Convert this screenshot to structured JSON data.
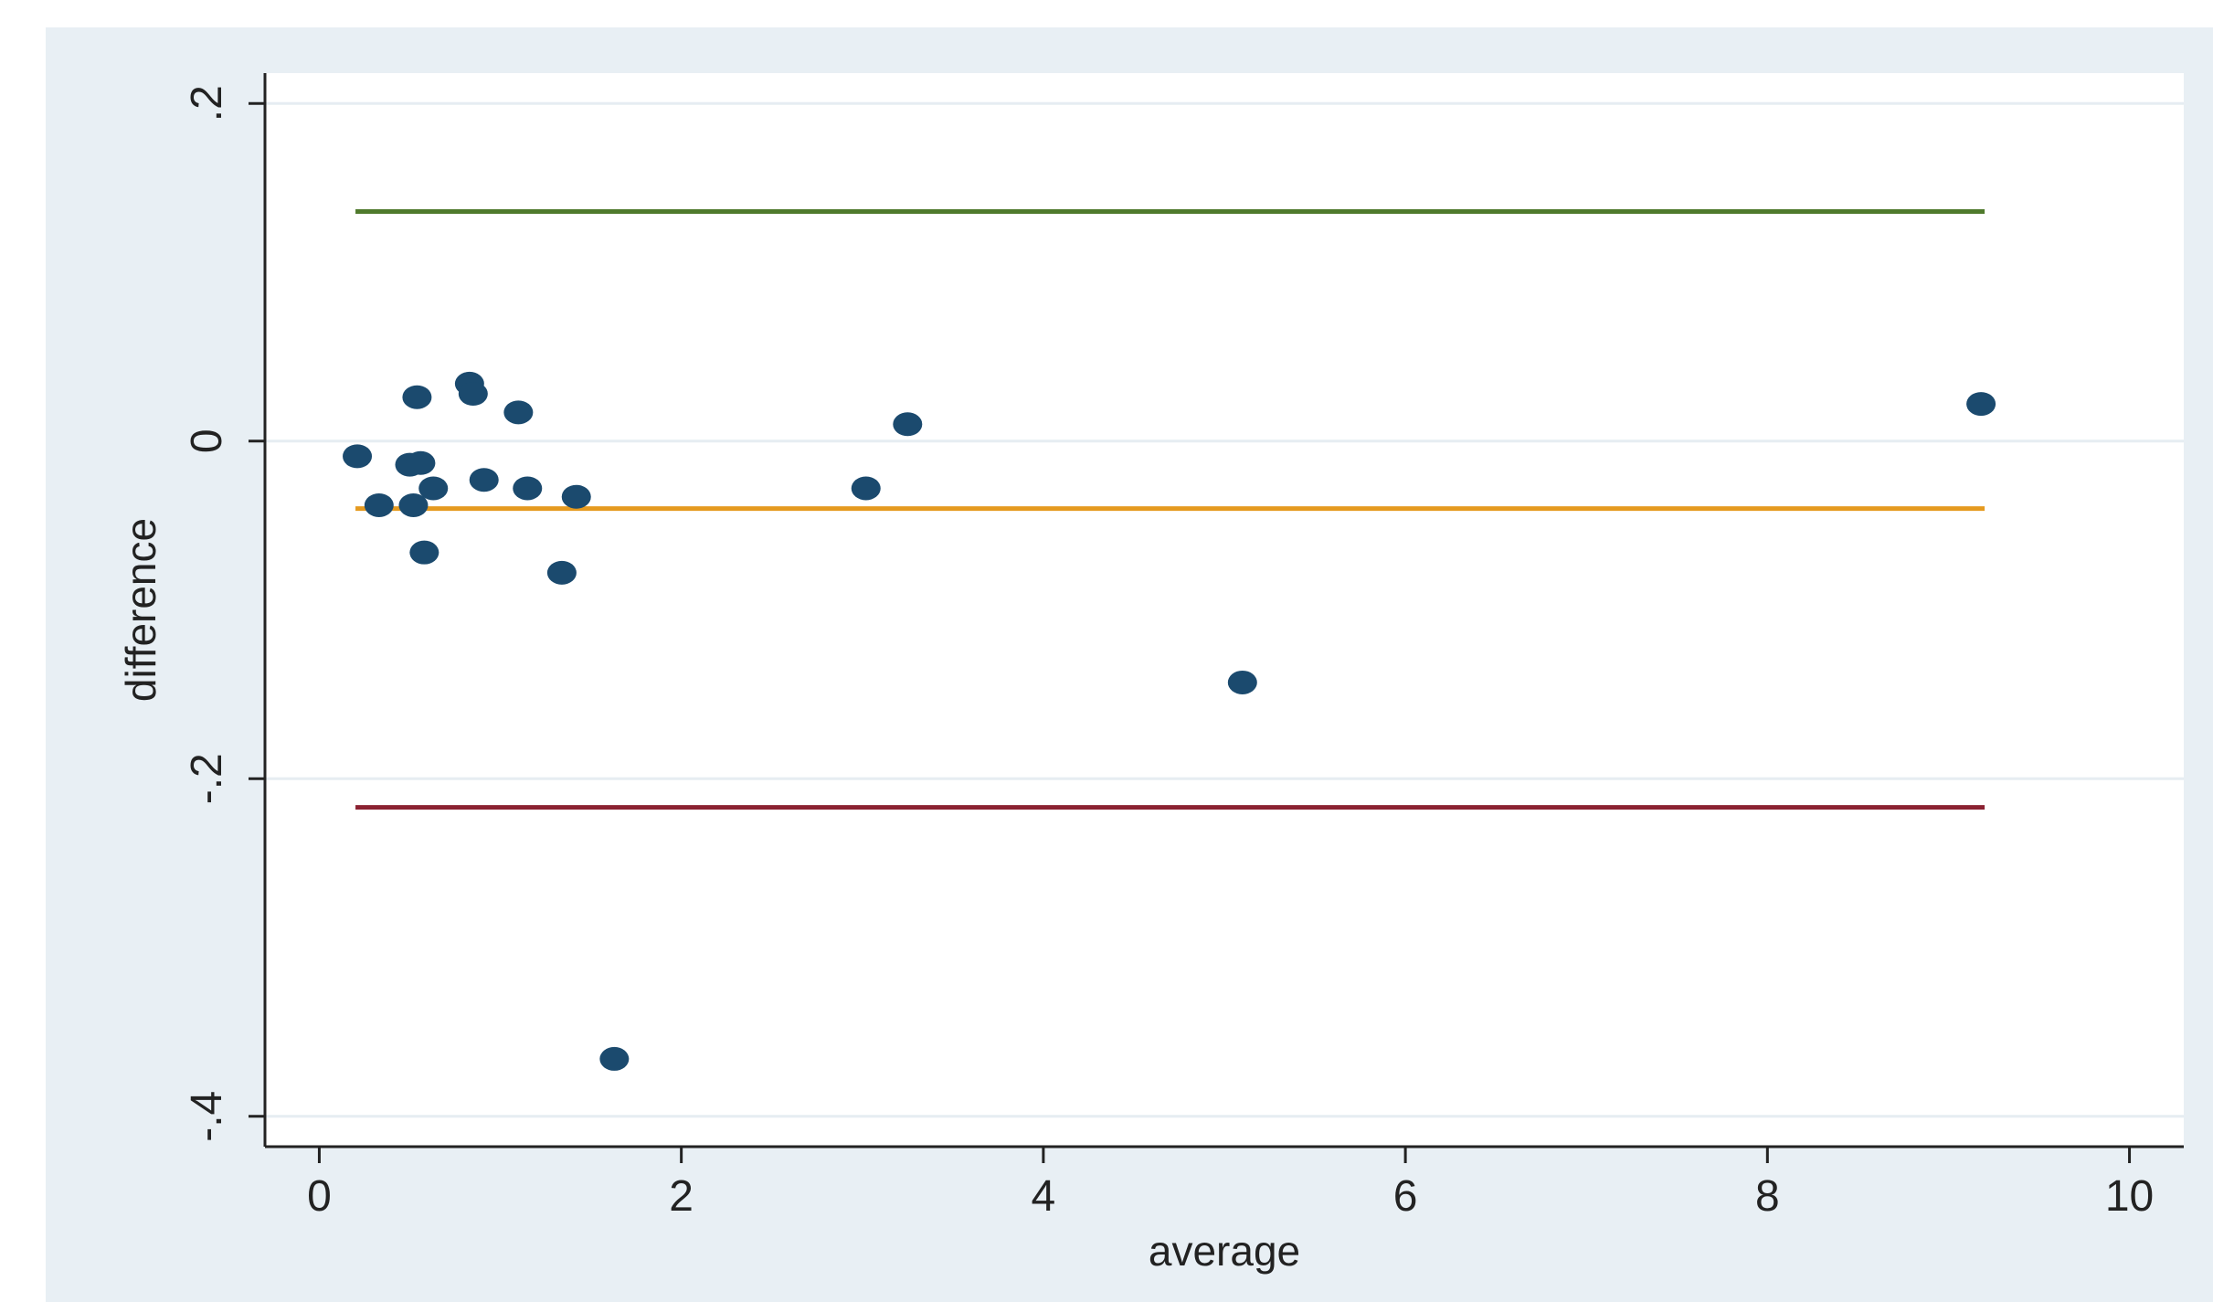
{
  "chart_data": {
    "type": "scatter",
    "title": "",
    "xlabel": "average",
    "ylabel": "difference",
    "xlim": [
      -0.3,
      10.3
    ],
    "ylim": [
      -0.418,
      0.218
    ],
    "x_ticks": [
      0,
      2,
      4,
      6,
      8,
      10
    ],
    "x_tick_labels": [
      "0",
      "2",
      "4",
      "6",
      "8",
      "10"
    ],
    "y_ticks": [
      0.2,
      0,
      -0.2,
      -0.4
    ],
    "y_tick_labels": [
      ".2",
      "0",
      "-.2",
      "-.4"
    ],
    "grid": "horizontal",
    "legend": "none",
    "colors": {
      "outer_background": "#e8eff4",
      "plot_background": "#ffffff",
      "gridline": "#e6edf2",
      "points": "#1b4a6e",
      "upper_limit_line": "#4f7a2c",
      "mean_line": "#e59a1f",
      "lower_limit_line": "#8b2232",
      "axis": "#222222"
    },
    "points": [
      {
        "x": 0.21,
        "y": -0.009
      },
      {
        "x": 0.33,
        "y": -0.038
      },
      {
        "x": 0.5,
        "y": -0.014
      },
      {
        "x": 0.52,
        "y": -0.038
      },
      {
        "x": 0.54,
        "y": 0.026
      },
      {
        "x": 0.56,
        "y": -0.013
      },
      {
        "x": 0.58,
        "y": -0.066
      },
      {
        "x": 0.63,
        "y": -0.028
      },
      {
        "x": 0.83,
        "y": 0.034
      },
      {
        "x": 0.85,
        "y": 0.028
      },
      {
        "x": 0.91,
        "y": -0.023
      },
      {
        "x": 1.1,
        "y": 0.017
      },
      {
        "x": 1.15,
        "y": -0.028
      },
      {
        "x": 1.34,
        "y": -0.078
      },
      {
        "x": 1.42,
        "y": -0.033
      },
      {
        "x": 1.63,
        "y": -0.366
      },
      {
        "x": 3.02,
        "y": -0.028
      },
      {
        "x": 3.25,
        "y": 0.01
      },
      {
        "x": 5.1,
        "y": -0.143
      },
      {
        "x": 9.18,
        "y": 0.022
      }
    ],
    "reference_lines": [
      {
        "y": 0.136,
        "x_from": 0.2,
        "x_to": 9.2,
        "color": "#4f7a2c"
      },
      {
        "y": -0.04,
        "x_from": 0.2,
        "x_to": 9.2,
        "color": "#e59a1f"
      },
      {
        "y": -0.217,
        "x_from": 0.2,
        "x_to": 9.2,
        "color": "#8b2232"
      }
    ]
  }
}
